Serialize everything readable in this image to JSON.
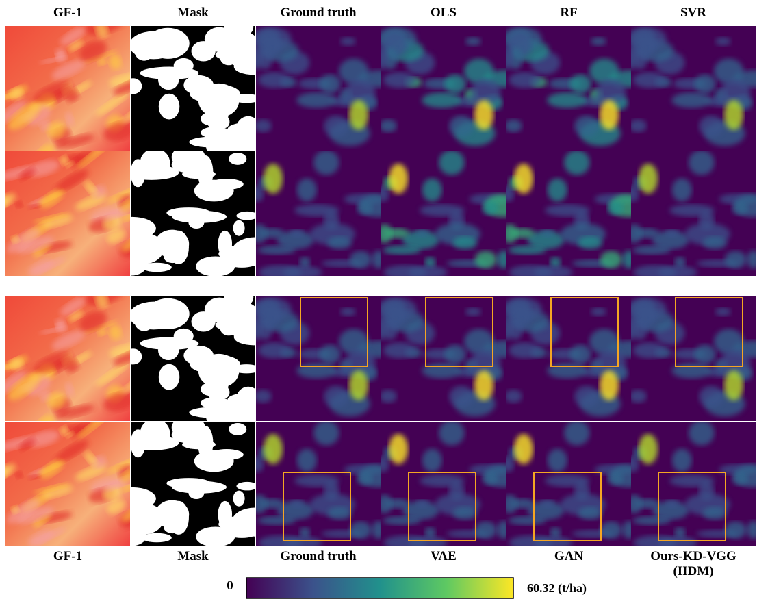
{
  "top_labels": [
    "GF-1",
    "Mask",
    "Ground truth",
    "OLS",
    "RF",
    "SVR"
  ],
  "bottom_labels": [
    "GF-1",
    "Mask",
    "Ground truth",
    "VAE",
    "GAN",
    "Ours-KD-VGG\n(IIDM)"
  ],
  "colorbar": {
    "min_label": "0",
    "max_label": "60.32 (t/ha)"
  }
}
